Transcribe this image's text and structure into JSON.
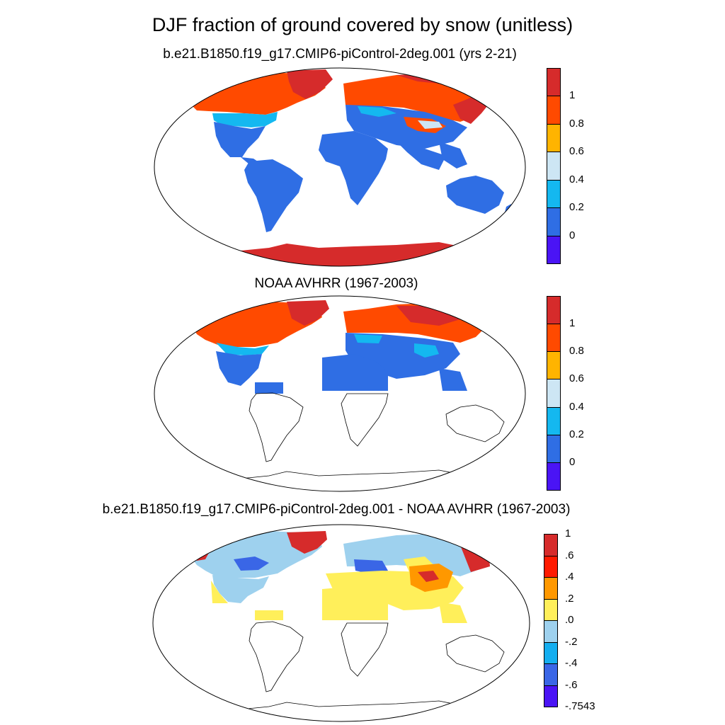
{
  "figure": {
    "title": "DJF fraction of ground covered by snow (unitless)"
  },
  "panels": [
    {
      "id": "model",
      "title": "b.e21.B1850.f19_g17.CMIP6-piControl-2deg.001 (yrs 2-21)",
      "colorbar": {
        "colors": [
          "#d62b2b",
          "#ff4a00",
          "#ffb400",
          "#cde6f4",
          "#14b8f0",
          "#2f6ee4",
          "#4a14f5"
        ],
        "labels": [
          "1",
          "0.8",
          "0.6",
          "0.4",
          "0.2",
          "0"
        ]
      }
    },
    {
      "id": "obs",
      "title": "NOAA AVHRR (1967-2003)",
      "colorbar": {
        "colors": [
          "#d62b2b",
          "#ff4a00",
          "#ffb400",
          "#cde6f4",
          "#14b8f0",
          "#2f6ee4",
          "#4a14f5"
        ],
        "labels": [
          "1",
          "0.8",
          "0.6",
          "0.4",
          "0.2",
          "0"
        ]
      }
    },
    {
      "id": "diff",
      "title": "b.e21.B1850.f19_g17.CMIP6-piControl-2deg.001 - NOAA AVHRR (1967-2003)",
      "colorbar": {
        "colors": [
          "#d62b2b",
          "#ff1a00",
          "#ff9800",
          "#ffef5a",
          "#9ed1ee",
          "#14aef0",
          "#3a66e6",
          "#4a14f5"
        ],
        "labels": [
          "1",
          ".6",
          ".4",
          ".2",
          ".0",
          "-.2",
          "-.4",
          "-.6",
          "-.7543"
        ]
      }
    }
  ]
}
